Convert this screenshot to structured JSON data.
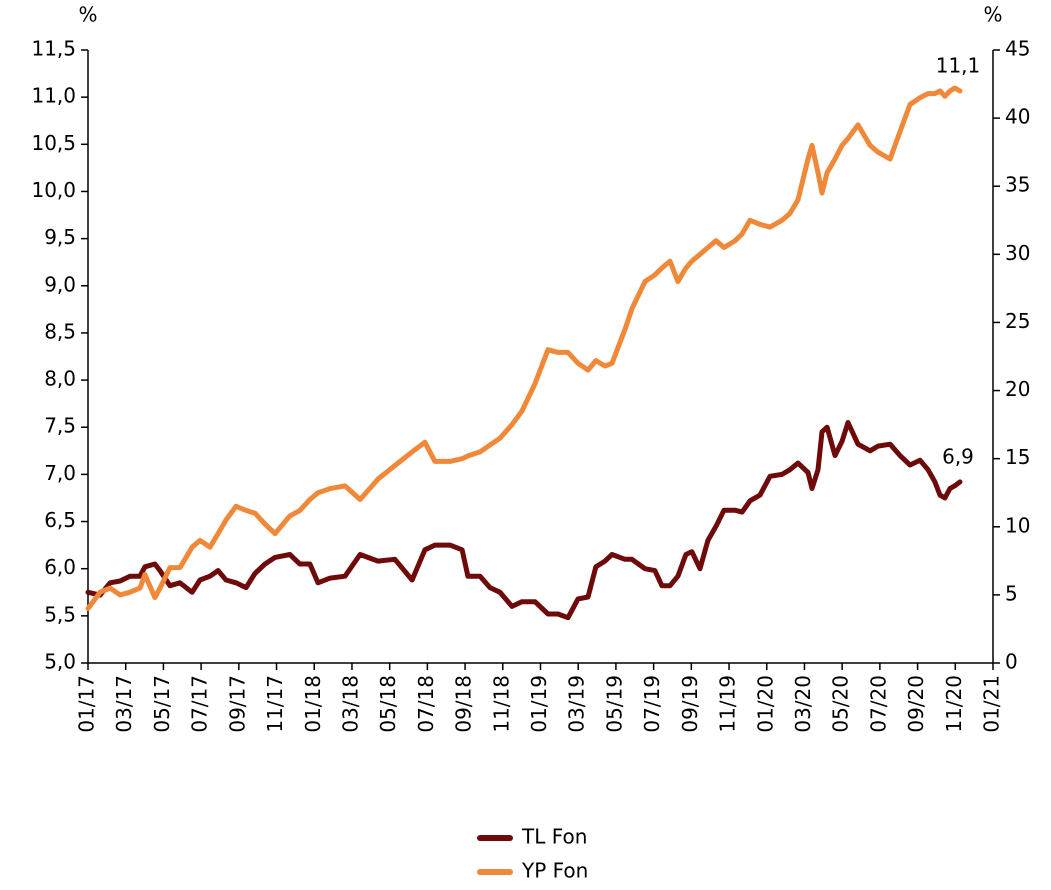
{
  "chart_data": {
    "type": "line",
    "y_label": "%",
    "y2_label": "%",
    "x": [
      0,
      0.64,
      1.17,
      1.7,
      2.23,
      2.76,
      3.02,
      3.55,
      3.82,
      4.35,
      4.88,
      5.52,
      5.94,
      6.47,
      6.9,
      7.32,
      7.85,
      8.38,
      8.86,
      9.39,
      9.92,
      10.71,
      11.24,
      11.77,
      12.2,
      12.84,
      13.63,
      14.43,
      15.38,
      16.28,
      17.19,
      17.87,
      18.4,
      19.2,
      19.84,
      20.15,
      20.79,
      21.32,
      21.85,
      22.49,
      23.02,
      23.71,
      24.4,
      24.93,
      25.46,
      25.99,
      26.52,
      26.94,
      27.42,
      27.79,
      28.48,
      28.85,
      29.54,
      30.07,
      30.44,
      30.87,
      31.29,
      31.71,
      32.03,
      32.46,
      32.88,
      33.31,
      33.73,
      34.32,
      34.69,
      35.11,
      35.64,
      36.17,
      36.81,
      37.23,
      37.66,
      38.19,
      38.4,
      38.72,
      38.93,
      39.2,
      39.62,
      39.99,
      40.31,
      40.84,
      41.48,
      41.9,
      42.54,
      43.07,
      43.6,
      44.13,
      44.55,
      44.92,
      45.19,
      45.45,
      45.72,
      45.98,
      46.25
    ],
    "series": [
      {
        "name": "TL Fon",
        "color": "#6e0a0a",
        "axis": "y",
        "values": [
          5.75,
          5.72,
          5.85,
          5.87,
          5.92,
          5.92,
          6.02,
          6.05,
          5.98,
          5.82,
          5.85,
          5.75,
          5.88,
          5.92,
          5.98,
          5.88,
          5.85,
          5.8,
          5.95,
          6.05,
          6.12,
          6.15,
          6.05,
          6.05,
          5.85,
          5.9,
          5.92,
          6.15,
          6.08,
          6.1,
          5.88,
          6.2,
          6.25,
          6.25,
          6.2,
          5.92,
          5.92,
          5.8,
          5.75,
          5.6,
          5.65,
          5.65,
          5.52,
          5.52,
          5.48,
          5.68,
          5.7,
          6.02,
          6.08,
          6.15,
          6.1,
          6.1,
          6.0,
          5.98,
          5.82,
          5.82,
          5.92,
          6.15,
          6.18,
          6.0,
          6.3,
          6.45,
          6.62,
          6.62,
          6.6,
          6.72,
          6.78,
          6.98,
          7.0,
          7.05,
          7.12,
          7.02,
          6.85,
          7.05,
          7.45,
          7.5,
          7.2,
          7.35,
          7.55,
          7.32,
          7.25,
          7.3,
          7.32,
          7.2,
          7.1,
          7.15,
          7.05,
          6.92,
          6.78,
          6.75,
          6.85,
          6.88,
          6.92
        ]
      },
      {
        "name": "YP Fon",
        "color": "#f0883a",
        "axis": "y2",
        "values": [
          4,
          5.2,
          5.5,
          5,
          5.2,
          5.5,
          6.5,
          4.8,
          5.5,
          7,
          7,
          8.5,
          9,
          8.5,
          9.5,
          10.5,
          11.5,
          11.2,
          11,
          10.2,
          9.5,
          10.8,
          11.2,
          12,
          12.5,
          12.8,
          13,
          12,
          13.5,
          14.5,
          15.5,
          16.2,
          14.8,
          14.8,
          15,
          15.2,
          15.5,
          16,
          16.5,
          17.5,
          18.5,
          20.5,
          23,
          22.8,
          22.8,
          22,
          21.5,
          22.2,
          21.8,
          22,
          24.5,
          26,
          28,
          28.5,
          29,
          29.5,
          28,
          29,
          29.5,
          30,
          30.5,
          31,
          30.5,
          31,
          31.5,
          32.5,
          32.2,
          32,
          32.5,
          33,
          34,
          37,
          38,
          36,
          34.5,
          36,
          37,
          38,
          38.5,
          39.5,
          38,
          37.5,
          37,
          39,
          41,
          41.5,
          41.8,
          41.8,
          42,
          41.6,
          42,
          42.2,
          42
        ]
      }
    ],
    "annotations": [
      {
        "text": "11,1"
      },
      {
        "text": "6,9"
      }
    ],
    "xlim": [
      0,
      48
    ],
    "xticks": [
      {
        "value": 0,
        "label": "01/17"
      },
      {
        "value": 2,
        "label": "03/17"
      },
      {
        "value": 4,
        "label": "05/17"
      },
      {
        "value": 6,
        "label": "07/17"
      },
      {
        "value": 8,
        "label": "09/17"
      },
      {
        "value": 10,
        "label": "11/17"
      },
      {
        "value": 12,
        "label": "01/18"
      },
      {
        "value": 14,
        "label": "03/18"
      },
      {
        "value": 16,
        "label": "05/18"
      },
      {
        "value": 18,
        "label": "07/18"
      },
      {
        "value": 20,
        "label": "09/18"
      },
      {
        "value": 22,
        "label": "11/18"
      },
      {
        "value": 24,
        "label": "01/19"
      },
      {
        "value": 26,
        "label": "03/19"
      },
      {
        "value": 28,
        "label": "05/19"
      },
      {
        "value": 30,
        "label": "07/19"
      },
      {
        "value": 32,
        "label": "09/19"
      },
      {
        "value": 34,
        "label": "11/19"
      },
      {
        "value": 36,
        "label": "01/20"
      },
      {
        "value": 38,
        "label": "03/20"
      },
      {
        "value": 40,
        "label": "05/20"
      },
      {
        "value": 42,
        "label": "07/20"
      },
      {
        "value": 44,
        "label": "09/20"
      },
      {
        "value": 46,
        "label": "11/20"
      },
      {
        "value": 48,
        "label": "01/21"
      }
    ],
    "ylim": [
      5,
      11.5
    ],
    "yticks": [
      {
        "value": 5,
        "label": "5,0"
      },
      {
        "value": 5.5,
        "label": "5,5"
      },
      {
        "value": 6,
        "label": "6,0"
      },
      {
        "value": 6.5,
        "label": "6,5"
      },
      {
        "value": 7,
        "label": "7,0"
      },
      {
        "value": 7.5,
        "label": "7,5"
      },
      {
        "value": 8,
        "label": "8,0"
      },
      {
        "value": 8.5,
        "label": "8,5"
      },
      {
        "value": 9,
        "label": "9,0"
      },
      {
        "value": 9.5,
        "label": "9,5"
      },
      {
        "value": 10,
        "label": "10,0"
      },
      {
        "value": 10.5,
        "label": "10,5"
      },
      {
        "value": 11,
        "label": "11,0"
      },
      {
        "value": 11.5,
        "label": "11,5"
      }
    ],
    "y2lim": [
      0,
      45
    ],
    "y2ticks": [
      0,
      5,
      10,
      15,
      20,
      25,
      30,
      35,
      40,
      45
    ],
    "legend": "bottom",
    "grid": false
  }
}
